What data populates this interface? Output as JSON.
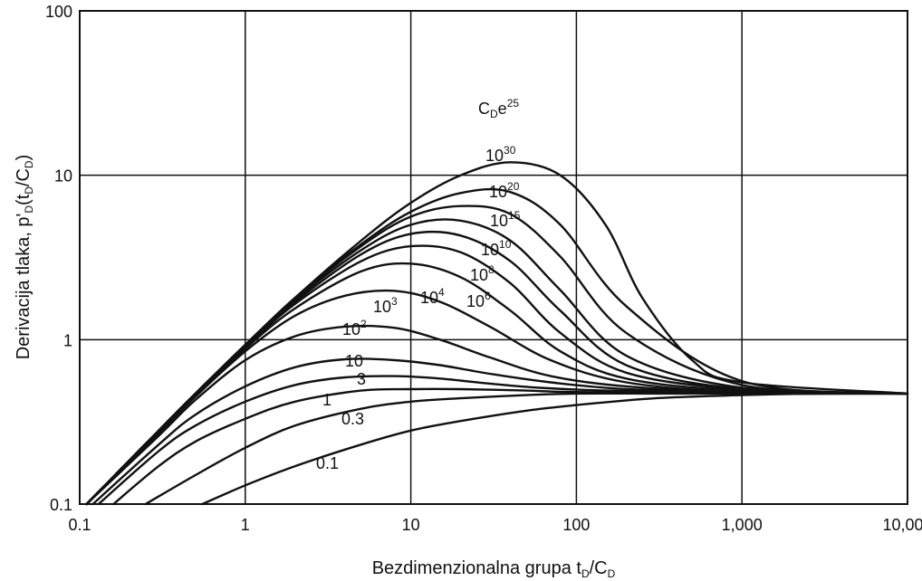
{
  "chart_data": {
    "type": "line",
    "xscale": "log",
    "yscale": "log",
    "xlim": [
      0.1,
      10000
    ],
    "ylim": [
      0.1,
      100
    ],
    "grid": true,
    "xlabel": "Bezdimenzionalna grupa tD/CD",
    "ylabel": "Derivacija tlaka, p'D(tD/CD)",
    "xticks": [
      "0.1",
      "1",
      "10",
      "100",
      "1,000",
      "10,000"
    ],
    "yticks": [
      "0.1",
      "1",
      "10",
      "100"
    ],
    "legend_title": "CDe25",
    "series": [
      {
        "name": "0.1",
        "x": [
          0.55,
          1,
          2,
          5,
          10,
          20,
          50,
          100,
          300,
          1000,
          3000,
          10000
        ],
        "y": [
          0.1,
          0.13,
          0.17,
          0.23,
          0.28,
          0.32,
          0.37,
          0.4,
          0.44,
          0.46,
          0.47,
          0.47
        ]
      },
      {
        "name": "0.3",
        "x": [
          0.25,
          0.5,
          1,
          2,
          5,
          10,
          20,
          50,
          100,
          300,
          1000,
          10000
        ],
        "y": [
          0.1,
          0.15,
          0.22,
          0.3,
          0.38,
          0.42,
          0.44,
          0.46,
          0.47,
          0.47,
          0.47,
          0.47
        ]
      },
      {
        "name": "1",
        "x": [
          0.16,
          0.3,
          0.5,
          1,
          2,
          5,
          10,
          20,
          50,
          100,
          1000,
          10000
        ],
        "y": [
          0.1,
          0.17,
          0.24,
          0.33,
          0.42,
          0.49,
          0.5,
          0.5,
          0.49,
          0.48,
          0.47,
          0.47
        ]
      },
      {
        "name": "3",
        "x": [
          0.13,
          0.3,
          0.5,
          1,
          2,
          4,
          8,
          15,
          30,
          60,
          150,
          500,
          10000
        ],
        "y": [
          0.1,
          0.21,
          0.3,
          0.42,
          0.53,
          0.59,
          0.6,
          0.58,
          0.54,
          0.51,
          0.49,
          0.48,
          0.47
        ]
      },
      {
        "name": "10",
        "x": [
          0.12,
          0.3,
          0.5,
          1,
          2,
          4,
          8,
          15,
          30,
          70,
          200,
          1000,
          10000
        ],
        "y": [
          0.1,
          0.23,
          0.35,
          0.52,
          0.68,
          0.76,
          0.75,
          0.7,
          0.62,
          0.55,
          0.5,
          0.48,
          0.47
        ]
      },
      {
        "name": "10²",
        "x": [
          0.11,
          0.3,
          0.5,
          1,
          2,
          4,
          8,
          15,
          30,
          70,
          200,
          1000,
          10000
        ],
        "y": [
          0.1,
          0.26,
          0.43,
          0.75,
          1.05,
          1.2,
          1.18,
          1.0,
          0.78,
          0.6,
          0.52,
          0.48,
          0.47
        ]
      },
      {
        "name": "10³",
        "x": [
          0.11,
          0.3,
          0.5,
          1,
          2,
          4,
          8,
          15,
          30,
          70,
          200,
          1000,
          10000
        ],
        "y": [
          0.1,
          0.27,
          0.45,
          0.85,
          1.4,
          1.85,
          1.98,
          1.7,
          1.2,
          0.75,
          0.55,
          0.48,
          0.47
        ]
      },
      {
        "name": "10⁴",
        "x": [
          0.11,
          0.3,
          0.5,
          1,
          2,
          5,
          10,
          20,
          40,
          80,
          200,
          1000,
          10000
        ],
        "y": [
          0.1,
          0.28,
          0.46,
          0.88,
          1.55,
          2.6,
          2.9,
          2.4,
          1.5,
          0.85,
          0.58,
          0.49,
          0.47
        ]
      },
      {
        "name": "10⁶",
        "x": [
          0.11,
          0.3,
          0.5,
          1,
          2,
          5,
          10,
          20,
          40,
          80,
          200,
          1000,
          10000
        ],
        "y": [
          0.1,
          0.28,
          0.47,
          0.9,
          1.65,
          3.0,
          3.7,
          3.4,
          2.2,
          1.1,
          0.63,
          0.5,
          0.47
        ]
      },
      {
        "name": "10⁸",
        "x": [
          0.11,
          0.3,
          0.5,
          1,
          2,
          5,
          10,
          20,
          40,
          80,
          200,
          1000,
          10000
        ],
        "y": [
          0.1,
          0.28,
          0.47,
          0.92,
          1.7,
          3.3,
          4.4,
          4.3,
          3.0,
          1.5,
          0.7,
          0.5,
          0.47
        ]
      },
      {
        "name": "10¹⁰",
        "x": [
          0.11,
          0.3,
          0.5,
          1,
          2,
          5,
          10,
          20,
          40,
          80,
          200,
          1000,
          10000
        ],
        "y": [
          0.1,
          0.28,
          0.47,
          0.93,
          1.75,
          3.5,
          5.0,
          5.3,
          4.0,
          2.0,
          0.8,
          0.51,
          0.47
        ]
      },
      {
        "name": "10¹⁵",
        "x": [
          0.11,
          0.3,
          0.5,
          1,
          2,
          5,
          10,
          20,
          40,
          80,
          200,
          1000,
          10000
        ],
        "y": [
          0.1,
          0.28,
          0.47,
          0.93,
          1.78,
          3.7,
          5.6,
          6.5,
          5.8,
          3.2,
          1.1,
          0.53,
          0.47
        ]
      },
      {
        "name": "10²⁰",
        "x": [
          0.11,
          0.3,
          0.5,
          1,
          2,
          5,
          10,
          20,
          40,
          80,
          200,
          1000,
          10000
        ],
        "y": [
          0.1,
          0.28,
          0.47,
          0.93,
          1.8,
          3.8,
          6.0,
          7.8,
          7.9,
          5.0,
          1.6,
          0.56,
          0.47
        ]
      },
      {
        "name": "10³⁰",
        "x": [
          0.11,
          0.3,
          0.5,
          1,
          2,
          5,
          10,
          20,
          40,
          80,
          150,
          250,
          500,
          1000,
          10000
        ],
        "y": [
          0.1,
          0.28,
          0.47,
          0.93,
          1.8,
          4.0,
          6.8,
          10.0,
          12.0,
          10.0,
          5.0,
          1.8,
          0.75,
          0.55,
          0.47
        ]
      }
    ]
  },
  "labels": {
    "legend_title_main": "C",
    "legend_title_sub": "D",
    "legend_title_e": "e",
    "legend_title_sup": "25",
    "xlabel_main": "Bezdimenzionalna grupa t",
    "xlabel_sub1": "D",
    "xlabel_mid": "/C",
    "xlabel_sub2": "D",
    "ylabel_a": "Derivacija tlaka, p'",
    "ylabel_b": "D",
    "ylabel_c": "(t",
    "ylabel_d": "D",
    "ylabel_e": "/C",
    "ylabel_f": "D",
    "ylabel_g": ")",
    "curve_base": "10",
    "curve_labels": {
      "c30": "30",
      "c20": "20",
      "c15": "15",
      "c10": "10",
      "c8": "8",
      "c6": "6",
      "c4": "4",
      "c3": "3",
      "c2": "2",
      "ten": "10",
      "three": "3",
      "one": "1",
      "p3": "0.3",
      "p1": "0.1"
    }
  }
}
